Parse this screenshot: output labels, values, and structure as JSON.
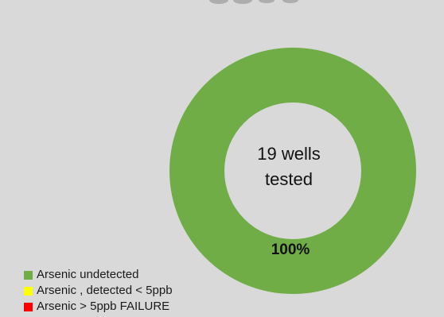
{
  "chart_data": {
    "type": "pie",
    "donut": true,
    "center_text": [
      "19 wells",
      "tested"
    ],
    "slices": [
      {
        "name": "Arsenic undetected",
        "value": 100,
        "color": "#70ad47",
        "label": "100%"
      },
      {
        "name": "Arsenic , detected < 5ppb",
        "value": 0,
        "color": "#ffff00"
      },
      {
        "name": "Arsenic > 5ppb FAILURE",
        "value": 0,
        "color": "#ff0000"
      }
    ],
    "legend_position": "bottom-left"
  }
}
